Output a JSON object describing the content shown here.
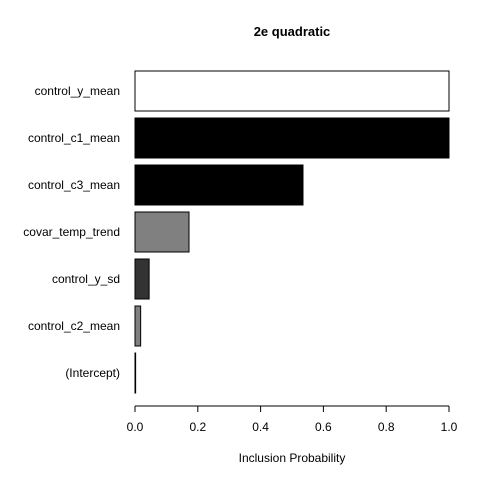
{
  "chart_data": {
    "type": "bar",
    "orientation": "horizontal",
    "title": "2e quadratic",
    "xlabel": "Inclusion Probability",
    "ylabel": "",
    "xlim": [
      0,
      1
    ],
    "x_ticks": [
      "0.0",
      "0.2",
      "0.4",
      "0.6",
      "0.8",
      "1.0"
    ],
    "categories": [
      "control_y_mean",
      "control_c1_mean",
      "control_c3_mean",
      "covar_temp_trend",
      "control_y_sd",
      "control_c2_mean",
      "(Intercept)"
    ],
    "values": [
      1.0,
      1.0,
      0.535,
      0.172,
      0.045,
      0.018,
      0.002
    ],
    "bar_colors": [
      "#ffffff",
      "#000000",
      "#000000",
      "#808080",
      "#333333",
      "#808080",
      "#ffffff"
    ],
    "grid": false,
    "legend": "none"
  }
}
